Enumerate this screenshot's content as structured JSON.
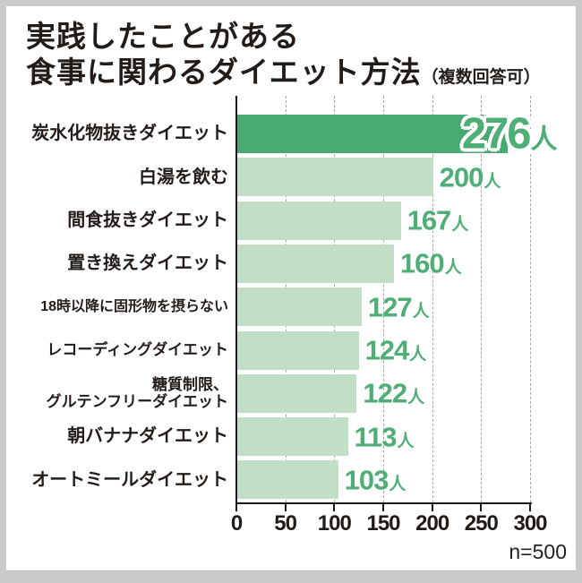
{
  "panel": {
    "title_line1": "実践したことがある",
    "title_line2": "食事に関わるダイエット方法",
    "title_caption": "（複数回答可）",
    "footnote": "n=500"
  },
  "chart_data": {
    "type": "bar",
    "orientation": "horizontal",
    "title": "実践したことがある食事に関わるダイエット方法（複数回答可）",
    "sample_note": "n=500",
    "unit_suffix": "人",
    "xlim": [
      0,
      300
    ],
    "x_ticks": [
      0,
      50,
      100,
      150,
      200,
      250,
      300
    ],
    "grid": "vertical-dashed",
    "legend": "none",
    "highlight_index": 0,
    "categories": [
      "炭水化物抜きダイエット",
      "白湯を飲む",
      "間食抜きダイエット",
      "置き換えダイエット",
      "18時以降に固形物を摂らない",
      "レコーディングダイエット",
      "糖質制限、\nグルテンフリーダイエット",
      "朝バナナダイエット",
      "オートミールダイエット"
    ],
    "values": [
      276,
      200,
      167,
      160,
      127,
      124,
      122,
      113,
      103
    ],
    "colors": {
      "bar": "#c0dfc5",
      "bar_highlight": "#47aa70",
      "value_text": "#4fae76",
      "axis": "#1a1a1a",
      "grid": "#a3a7a7"
    }
  }
}
